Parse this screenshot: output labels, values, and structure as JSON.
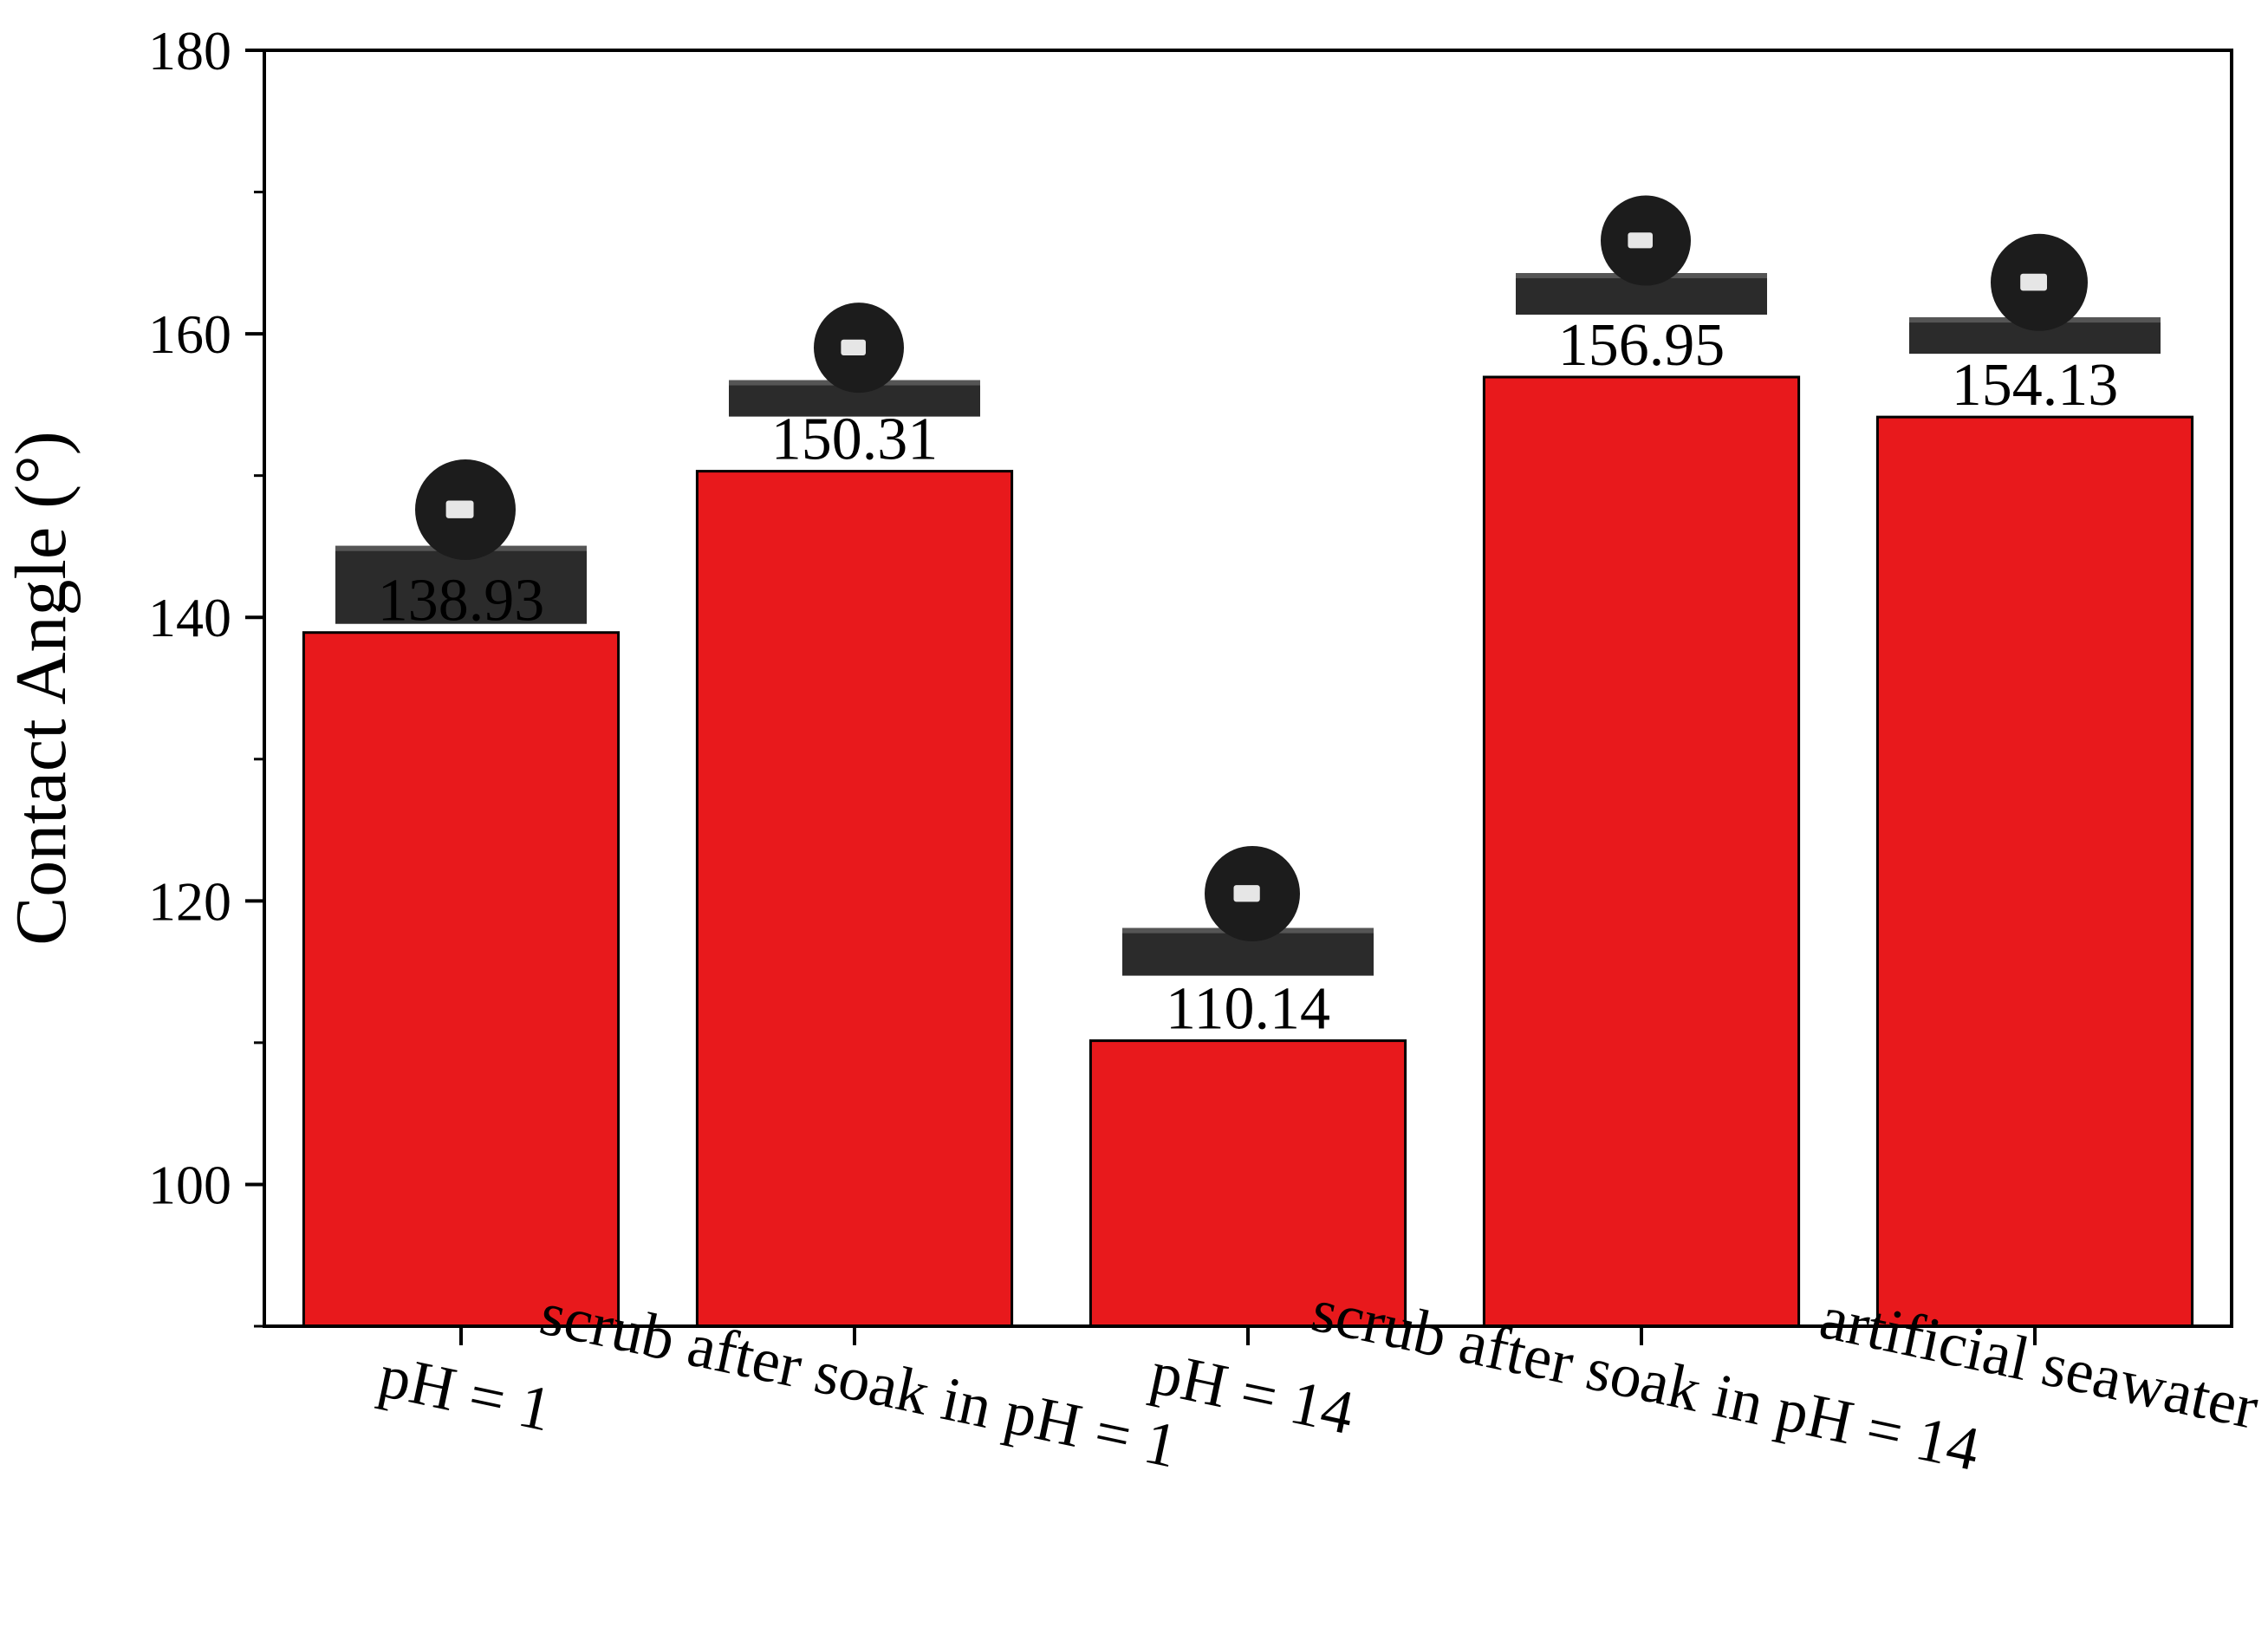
{
  "chart_data": {
    "type": "bar",
    "categories": [
      "pH = 1",
      "scrub after soak in pH = 1",
      "pH = 14",
      "scrub after soak in pH = 14",
      "artificial seawater"
    ],
    "values": [
      138.93,
      150.31,
      110.14,
      156.95,
      154.13
    ],
    "value_labels": [
      "138.93",
      "150.31",
      "110.14",
      "156.95",
      "154.13"
    ],
    "title": "",
    "xlabel": "",
    "ylabel": "Contact Angle (°)",
    "ylim": [
      90,
      180
    ],
    "yticks": [
      100,
      120,
      140,
      160,
      180
    ],
    "grid": false,
    "legend": "none",
    "bar_color": "#e8191c",
    "insets": "water droplet photographs above each bar"
  }
}
